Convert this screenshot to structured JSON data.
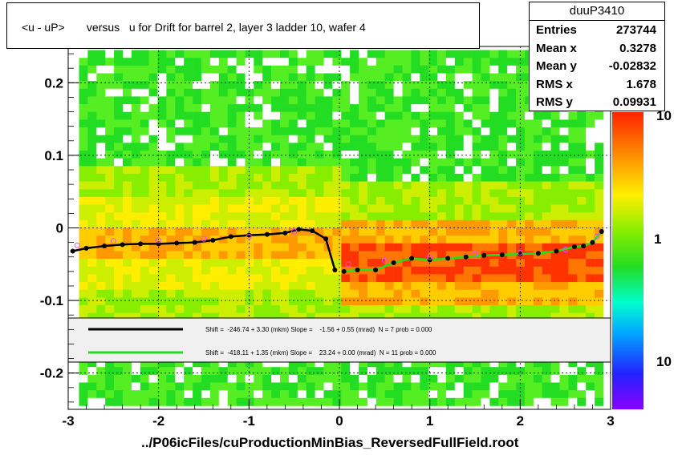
{
  "title": "<u - uP>       versus   u for Drift for barrel 2, layer 3 ladder 10, wafer 4",
  "footer": "../P06icFiles/cuProductionMinBias_ReversedFullField.root",
  "stats": {
    "name": "duuP3410",
    "rows": [
      {
        "key": "Entries",
        "value": "273744"
      },
      {
        "key": "Mean x",
        "value": "0.3278"
      },
      {
        "key": "Mean y",
        "value": "-0.02832"
      },
      {
        "key": "RMS x",
        "value": "1.678"
      },
      {
        "key": "RMS y",
        "value": "0.09931"
      }
    ]
  },
  "colors": {
    "black_fit": "#000000",
    "green_fit": "#22dd22",
    "profile_markers": "#ff44ff"
  },
  "chart_data": {
    "type": "heatmap",
    "xlim": [
      -3,
      3
    ],
    "ylim": [
      -0.25,
      0.25
    ],
    "x_ticks": [
      "-3",
      "-2",
      "-1",
      "0",
      "1",
      "2",
      "3"
    ],
    "y_ticks": [
      "-0.2",
      "-0.1",
      "0",
      "0.1",
      "0.2"
    ],
    "color_scale_labels": [
      "10",
      "1",
      "10"
    ],
    "grid": true,
    "legend": {
      "placement": "bottom-inside",
      "entries": [
        {
          "text": "Shift =  -246.74 + 3.30 (mkm) Slope =    -1.56 + 0.55 (mrad)  N = 7 prob = 0.000"
        },
        {
          "text": "Shift =  -418.11 + 1.35 (mkm) Slope =    23.24 + 0.00 (mrad)  N = 11 prob = 0.000"
        }
      ]
    },
    "series": [
      {
        "x": [
          -2.95,
          -2.8,
          -2.6,
          -2.4,
          -2.2,
          -2.0,
          -1.8,
          -1.6,
          -1.4,
          -1.2,
          -1.0,
          -0.8,
          -0.6,
          -0.45,
          -0.3,
          -0.15,
          -0.05
        ],
        "y": [
          -0.032,
          -0.028,
          -0.025,
          -0.023,
          -0.022,
          -0.022,
          -0.021,
          -0.02,
          -0.017,
          -0.012,
          -0.01,
          -0.009,
          -0.007,
          -0.002,
          -0.004,
          -0.015,
          -0.058
        ]
      },
      {
        "x": [
          0.05,
          0.2,
          0.4,
          0.6,
          0.8,
          1.0,
          1.2,
          1.4,
          1.6,
          1.8,
          2.0,
          2.2,
          2.4,
          2.6,
          2.7,
          2.8,
          2.9
        ],
        "y": [
          -0.06,
          -0.058,
          -0.058,
          -0.048,
          -0.042,
          -0.044,
          -0.042,
          -0.04,
          -0.038,
          -0.037,
          -0.036,
          -0.035,
          -0.032,
          -0.026,
          -0.025,
          -0.02,
          -0.005
        ]
      },
      {
        "x": [
          -2.9,
          -2.5,
          -2.0,
          -1.5,
          -1.0,
          -0.5,
          0.1,
          0.5,
          1.0,
          1.5,
          2.0,
          2.5,
          2.85
        ],
        "y": [
          -0.024,
          -0.018,
          -0.017,
          -0.015,
          -0.012,
          -0.005,
          -0.05,
          -0.045,
          -0.04,
          -0.036,
          -0.034,
          -0.03,
          -0.012
        ]
      }
    ]
  }
}
